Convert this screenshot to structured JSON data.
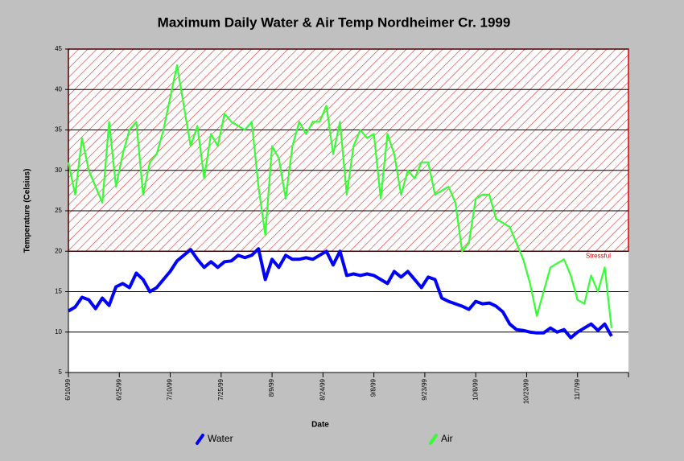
{
  "chart_data": {
    "type": "line",
    "title": "Maximum Daily Water &  Air Temp Nordheimer Cr. 1999",
    "xlabel": "Date",
    "ylabel": "Temperature (Celsius)",
    "x": [
      "6/10/99",
      "6/12/99",
      "6/14/99",
      "6/16/99",
      "6/18/99",
      "6/20/99",
      "6/22/99",
      "6/24/99",
      "6/26/99",
      "6/28/99",
      "6/30/99",
      "7/2/99",
      "7/4/99",
      "7/6/99",
      "7/8/99",
      "7/10/99",
      "7/12/99",
      "7/14/99",
      "7/16/99",
      "7/18/99",
      "7/20/99",
      "7/22/99",
      "7/24/99",
      "7/26/99",
      "7/28/99",
      "7/30/99",
      "8/1/99",
      "8/3/99",
      "8/5/99",
      "8/7/99",
      "8/9/99",
      "8/11/99",
      "8/13/99",
      "8/15/99",
      "8/17/99",
      "8/19/99",
      "8/21/99",
      "8/23/99",
      "8/25/99",
      "8/27/99",
      "8/29/99",
      "8/31/99",
      "9/2/99",
      "9/4/99",
      "9/6/99",
      "9/8/99",
      "9/10/99",
      "9/12/99",
      "9/14/99",
      "9/16/99",
      "9/18/99",
      "9/20/99",
      "9/22/99",
      "9/24/99",
      "9/26/99",
      "9/28/99",
      "9/30/99",
      "10/2/99",
      "10/4/99",
      "10/6/99",
      "10/8/99",
      "10/10/99",
      "10/12/99",
      "10/14/99",
      "10/16/99",
      "10/18/99",
      "10/20/99",
      "10/22/99",
      "10/24/99",
      "10/26/99",
      "10/28/99",
      "10/30/99",
      "11/1/99",
      "11/3/99",
      "11/5/99",
      "11/7/99",
      "11/9/99",
      "11/11/99",
      "11/13/99",
      "11/15/99",
      "11/17/99"
    ],
    "series": [
      {
        "name": "Water",
        "color": "#0000ff",
        "values": [
          12.6,
          13.1,
          14.3,
          14.0,
          12.9,
          14.2,
          13.3,
          15.6,
          16.0,
          15.5,
          17.3,
          16.5,
          15.0,
          15.5,
          16.5,
          17.5,
          18.8,
          19.5,
          20.2,
          19.0,
          18.0,
          18.7,
          18.0,
          18.7,
          18.8,
          19.5,
          19.2,
          19.5,
          20.3,
          16.5,
          19.0,
          18.0,
          19.5,
          19.0,
          19.0,
          19.2,
          19.0,
          19.5,
          20.0,
          18.3,
          20.0,
          17.0,
          17.2,
          17.0,
          17.2,
          17.0,
          16.5,
          16.0,
          17.5,
          16.8,
          17.5,
          16.5,
          15.5,
          16.8,
          16.5,
          14.2,
          13.8,
          13.5,
          13.2,
          12.8,
          13.8,
          13.5,
          13.6,
          13.2,
          12.5,
          11.0,
          10.3,
          10.2,
          10.0,
          9.9,
          9.9,
          10.5,
          10.0,
          10.3,
          9.3,
          10.0,
          10.5,
          11.0,
          10.2,
          11.0,
          9.5
        ]
      },
      {
        "name": "Air",
        "color": "#33ff33",
        "values": [
          31,
          27,
          34,
          30,
          28,
          26,
          36,
          28,
          32,
          35,
          36,
          27,
          31,
          32,
          35,
          39,
          43,
          38,
          33,
          35.5,
          29,
          34.5,
          33,
          37,
          36,
          35.5,
          35,
          36,
          28,
          22,
          33,
          31.5,
          26.5,
          33,
          36,
          34.5,
          36,
          36,
          38,
          32,
          36,
          27,
          33,
          35,
          34,
          34.5,
          26.5,
          34.5,
          32,
          27,
          30,
          29,
          31,
          31,
          27,
          27.5,
          28,
          26,
          20,
          21,
          26.5,
          27,
          27,
          24,
          23.5,
          23,
          21,
          19,
          16,
          12,
          15,
          18,
          18.5,
          19,
          17,
          14,
          13.5,
          17,
          15,
          18,
          10.5
        ]
      }
    ],
    "xlim": [
      "6/10/99",
      "11/22/99"
    ],
    "xticks": [
      "6/10/99",
      "6/25/99",
      "7/10/99",
      "7/25/99",
      "8/9/99",
      "8/24/99",
      "9/8/99",
      "9/23/99",
      "10/8/99",
      "10/23/99",
      "11/7/99"
    ],
    "ylim": [
      5,
      45
    ],
    "yticks": [
      5,
      10,
      15,
      20,
      25,
      30,
      35,
      40,
      45
    ],
    "grid": true,
    "stressful_band": {
      "label": "Stressful",
      "from": 20,
      "to": 45,
      "color": "#dd0000"
    }
  }
}
